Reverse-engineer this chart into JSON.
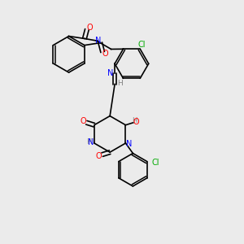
{
  "bg_color": "#ebebeb",
  "bond_color": "#000000",
  "atom_colors": {
    "O": "#ff0000",
    "N": "#0000ff",
    "Cl": "#00aa00",
    "H": "#808080",
    "C": "#000000"
  },
  "title": "",
  "figsize": [
    3.0,
    3.0
  ],
  "dpi": 100
}
